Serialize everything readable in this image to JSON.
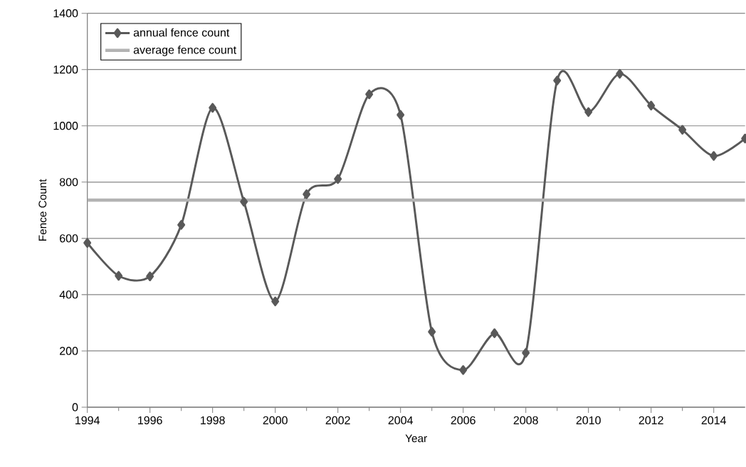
{
  "chart_data": {
    "type": "line",
    "xlabel": "Year",
    "ylabel": "Fence Count",
    "xlim": [
      1994,
      2015
    ],
    "xticks": [
      1994,
      1996,
      1998,
      2000,
      2002,
      2004,
      2006,
      2008,
      2010,
      2012,
      2014
    ],
    "ylim": [
      0,
      1400
    ],
    "yticks": [
      0,
      200,
      400,
      600,
      800,
      1000,
      1200,
      1400
    ],
    "grid": "y",
    "legend": "top left",
    "series": [
      {
        "name": "annual fence count",
        "color": "#595959",
        "marker": "diamond",
        "x": [
          1994,
          1995,
          1996,
          1997,
          1998,
          1999,
          2000,
          2001,
          2002,
          2003,
          2004,
          2005,
          2006,
          2007,
          2008,
          2009,
          2010,
          2011,
          2012,
          2013,
          2014,
          2015
        ],
        "values": [
          584,
          467,
          465,
          648,
          1064,
          730,
          376,
          757,
          811,
          1112,
          1039,
          268,
          132,
          263,
          193,
          1161,
          1049,
          1185,
          1072,
          986,
          893,
          955
        ]
      },
      {
        "name": "average fence count",
        "color": "#b3b3b3",
        "marker": "none",
        "x": [
          1994,
          2015
        ],
        "values": [
          736,
          736
        ]
      }
    ]
  }
}
